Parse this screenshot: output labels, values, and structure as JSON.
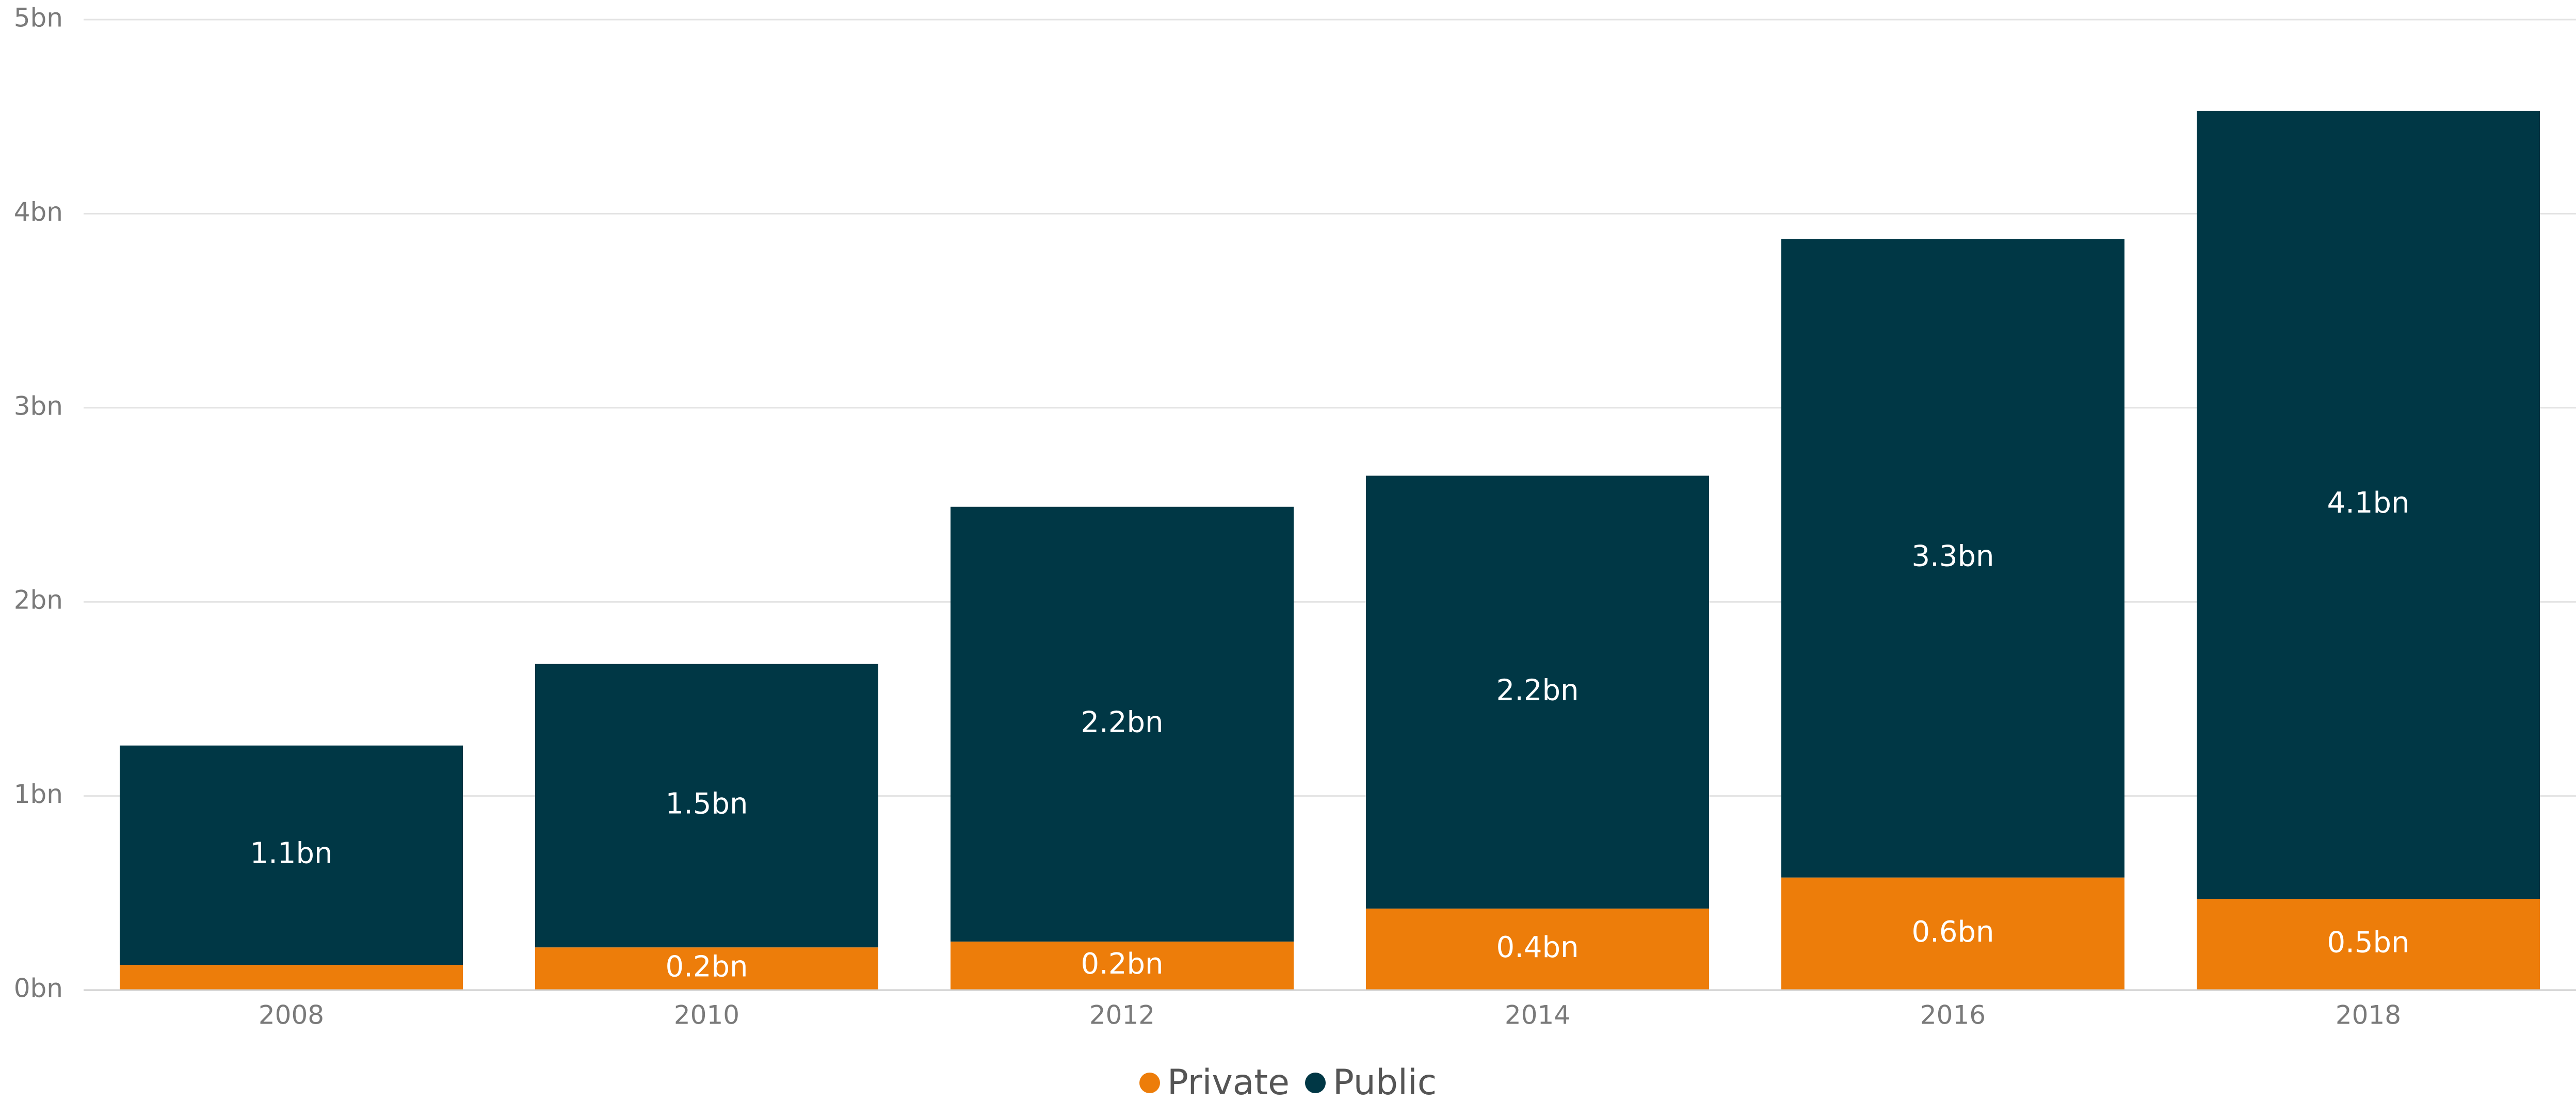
{
  "chart_data": {
    "type": "bar",
    "stacked": true,
    "categories": [
      "2008",
      "2010",
      "2012",
      "2014",
      "2016",
      "2018"
    ],
    "series": [
      {
        "name": "Private",
        "color": "#ED7D0A",
        "values": [
          0.13,
          0.22,
          0.25,
          0.42,
          0.58,
          0.47
        ],
        "data_labels": [
          "",
          "0.2bn",
          "0.2bn",
          "0.4bn",
          "0.6bn",
          "0.5bn"
        ]
      },
      {
        "name": "Public",
        "color": "#003745",
        "values": [
          1.13,
          1.46,
          2.24,
          2.23,
          3.29,
          4.06
        ],
        "data_labels": [
          "1.1bn",
          "1.5bn",
          "2.2bn",
          "2.2bn",
          "3.3bn",
          "4.1bn"
        ]
      }
    ],
    "ylim": [
      0,
      5
    ],
    "yticks": [
      0,
      1,
      2,
      3,
      4,
      5
    ],
    "ytick_labels": [
      "0bn",
      "1bn",
      "2bn",
      "3bn",
      "4bn",
      "5bn"
    ],
    "grid": true,
    "legend": "bottom-center",
    "title": "",
    "xlabel": "",
    "ylabel": ""
  }
}
